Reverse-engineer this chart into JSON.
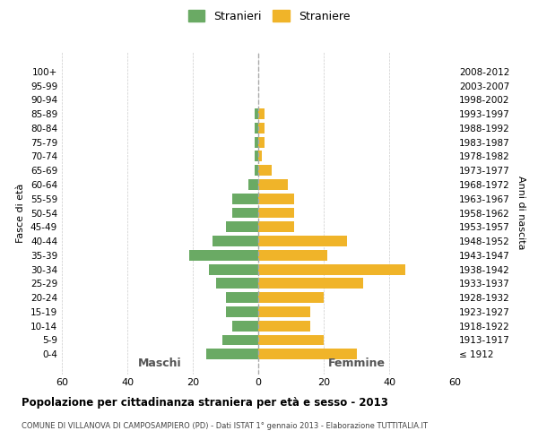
{
  "age_groups": [
    "100+",
    "95-99",
    "90-94",
    "85-89",
    "80-84",
    "75-79",
    "70-74",
    "65-69",
    "60-64",
    "55-59",
    "50-54",
    "45-49",
    "40-44",
    "35-39",
    "30-34",
    "25-29",
    "20-24",
    "15-19",
    "10-14",
    "5-9",
    "0-4"
  ],
  "birth_years": [
    "≤ 1912",
    "1913-1917",
    "1918-1922",
    "1923-1927",
    "1928-1932",
    "1933-1937",
    "1938-1942",
    "1943-1947",
    "1948-1952",
    "1953-1957",
    "1958-1962",
    "1963-1967",
    "1968-1972",
    "1973-1977",
    "1978-1982",
    "1983-1987",
    "1988-1992",
    "1993-1997",
    "1998-2002",
    "2003-2007",
    "2008-2012"
  ],
  "maschi": [
    0,
    0,
    0,
    1,
    1,
    1,
    1,
    1,
    3,
    8,
    8,
    10,
    14,
    21,
    15,
    13,
    10,
    10,
    8,
    11,
    16
  ],
  "femmine": [
    0,
    0,
    0,
    2,
    2,
    2,
    1,
    4,
    9,
    11,
    11,
    11,
    27,
    21,
    45,
    32,
    20,
    16,
    16,
    20,
    30
  ],
  "male_color": "#6aaa64",
  "female_color": "#f0b429",
  "title": "Popolazione per cittadinanza straniera per età e sesso - 2013",
  "subtitle": "COMUNE DI VILLANOVA DI CAMPOSAMPIERO (PD) - Dati ISTAT 1° gennaio 2013 - Elaborazione TUTTITALIA.IT",
  "xlabel_left": "Maschi",
  "xlabel_right": "Femmine",
  "ylabel_left": "Fasce di età",
  "ylabel_right": "Anni di nascita",
  "legend_male": "Stranieri",
  "legend_female": "Straniere",
  "xlim": 60,
  "background_color": "#ffffff",
  "grid_color": "#cccccc"
}
